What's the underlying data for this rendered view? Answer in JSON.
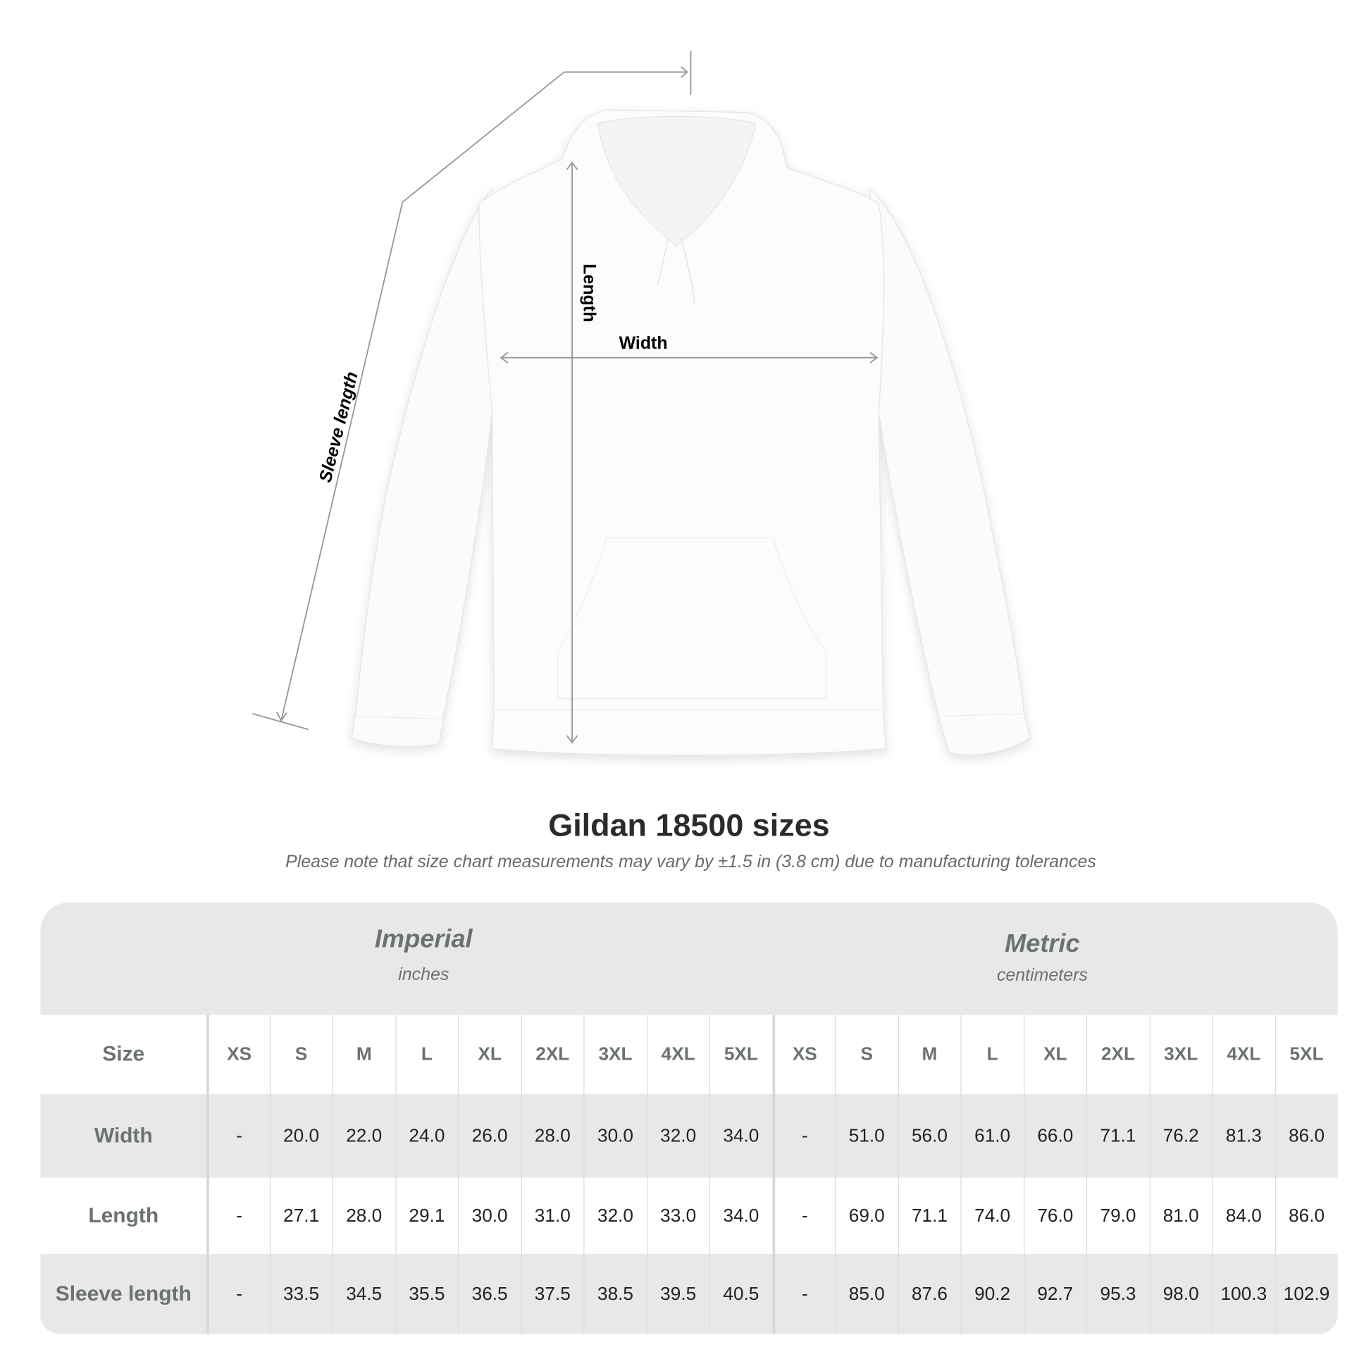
{
  "diagram": {
    "length_label": "Length",
    "width_label": "Width",
    "sleeve_label": "Sleeve length"
  },
  "title": "Gildan 18500 sizes",
  "note": "Please note that size chart measurements may vary by ±1.5 in (3.8 cm) due to manufacturing tolerances",
  "imperial": {
    "name": "Imperial",
    "unit": "inches"
  },
  "metric": {
    "name": "Metric",
    "unit": "centimeters"
  },
  "size_label": "Size",
  "sizes": [
    "XS",
    "S",
    "M",
    "L",
    "XL",
    "2XL",
    "3XL",
    "4XL",
    "5XL"
  ],
  "rows": [
    {
      "label": "Width",
      "imperial": [
        "-",
        "20.0",
        "22.0",
        "24.0",
        "26.0",
        "28.0",
        "30.0",
        "32.0",
        "34.0"
      ],
      "metric": [
        "-",
        "51.0",
        "56.0",
        "61.0",
        "66.0",
        "71.1",
        "76.2",
        "81.3",
        "86.0"
      ]
    },
    {
      "label": "Length",
      "imperial": [
        "-",
        "27.1",
        "28.0",
        "29.1",
        "30.0",
        "31.0",
        "32.0",
        "33.0",
        "34.0"
      ],
      "metric": [
        "-",
        "69.0",
        "71.1",
        "74.0",
        "76.0",
        "79.0",
        "81.0",
        "84.0",
        "86.0"
      ]
    },
    {
      "label": "Sleeve length",
      "imperial": [
        "-",
        "33.5",
        "34.5",
        "35.5",
        "36.5",
        "37.5",
        "38.5",
        "39.5",
        "40.5"
      ],
      "metric": [
        "-",
        "85.0",
        "87.6",
        "90.2",
        "92.7",
        "95.3",
        "98.0",
        "100.3",
        "102.9"
      ]
    }
  ],
  "colors": {
    "header_bg": "#e8e8e8",
    "label_text": "#6b7270",
    "measure_line": "#9a9a9a"
  }
}
